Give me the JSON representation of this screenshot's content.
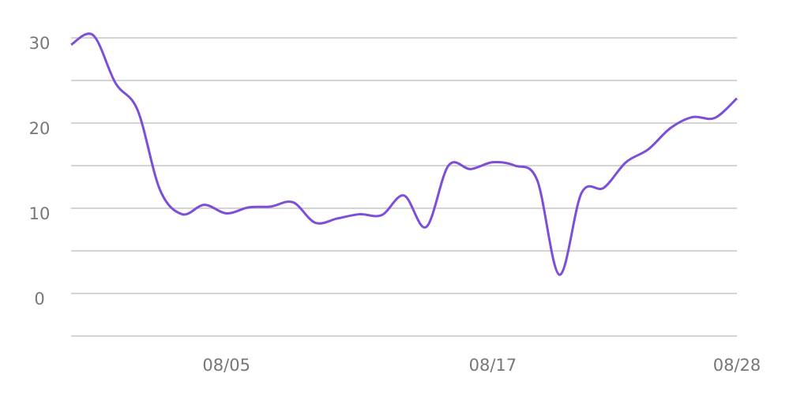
{
  "chart_data": {
    "type": "line",
    "categories": [
      null,
      null,
      null,
      null,
      null,
      null,
      null,
      "08/05",
      null,
      null,
      null,
      null,
      null,
      null,
      null,
      null,
      null,
      null,
      null,
      "08/17",
      null,
      null,
      null,
      null,
      null,
      null,
      null,
      null,
      null,
      null,
      "08/28"
    ],
    "series": [
      {
        "color": "#7c4fd8",
        "values": [
          29.2,
          30.3,
          24.7,
          21.5,
          12.2,
          9.3,
          10.4,
          9.4,
          10.1,
          10.2,
          10.7,
          8.3,
          8.8,
          9.3,
          9.2,
          11.5,
          7.8,
          15.0,
          14.6,
          15.4,
          15.0,
          13.3,
          2.2,
          11.8,
          12.4,
          15.4,
          16.9,
          19.4,
          20.7,
          20.6,
          22.9
        ]
      }
    ],
    "ylim": [
      -5,
      30
    ],
    "yticks": [
      0,
      10,
      20,
      30
    ],
    "grid": true
  }
}
